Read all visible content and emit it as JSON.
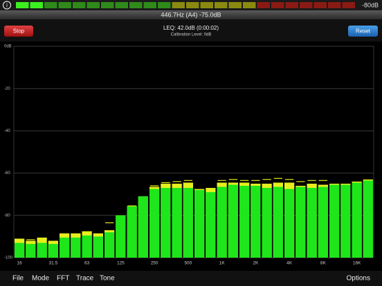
{
  "top_bar": {
    "info_icon": "i",
    "meter_label": "-80dB"
  },
  "pitch_readout": "446.7Hz (A4) -75.0dB",
  "toolbar": {
    "stop_button": "Stop",
    "leq": "LEQ: 42.0dB (0:00:02)",
    "calibration": "Calibration Level: 0dB",
    "reset_button": "Reset"
  },
  "chart_data": {
    "type": "bar",
    "categories": [
      "16",
      null,
      null,
      "31.5",
      null,
      null,
      "63",
      null,
      null,
      "125",
      null,
      null,
      "250",
      null,
      null,
      "500",
      null,
      null,
      "1K",
      null,
      null,
      "2K",
      null,
      null,
      "4K",
      null,
      null,
      "8K",
      null,
      null,
      "16K",
      null
    ],
    "series": [
      {
        "color": "#e6ef1c",
        "values": [
          -91,
          -92,
          -90.5,
          -92,
          -88.5,
          -88.5,
          -87.5,
          -88.5,
          -87,
          -80,
          -75.5,
          -71,
          -66.5,
          -65,
          -65,
          -64.5,
          -67.5,
          -67,
          -64.5,
          -64.5,
          -64.5,
          -65,
          -65,
          -64.5,
          -64.5,
          -66,
          -65,
          -65.5,
          -65,
          -65,
          -64,
          -63
        ]
      },
      {
        "color": "#1ee61a",
        "values": [
          -93,
          -93.5,
          -93,
          -93.5,
          -90.5,
          -90.5,
          -89.5,
          -90,
          -88,
          -80,
          -75.5,
          -71,
          -67.5,
          -67,
          -67,
          -67,
          -68,
          -69,
          -66.5,
          -65.5,
          -66,
          -66,
          -67,
          -66.5,
          -67.5,
          -66.5,
          -67,
          -66.5,
          -65.5,
          -65.5,
          -64.5,
          -63.5
        ]
      },
      {
        "color": "#e6ef1c",
        "values": [
          null,
          -91.5,
          null,
          null,
          null,
          null,
          null,
          null,
          -83.5,
          null,
          -75.5,
          null,
          -66,
          -64.5,
          -64,
          -63.5,
          null,
          null,
          -63.5,
          -63,
          -63.5,
          -63.5,
          -63,
          -62.5,
          -63,
          -64,
          -63.5,
          -63.5,
          null,
          null,
          null,
          null
        ]
      }
    ],
    "ylim": [
      -100,
      0
    ],
    "yticks": [
      {
        "value": 0,
        "label": "0dB"
      },
      -20,
      -40,
      -60,
      -80,
      -100
    ],
    "grid": true
  },
  "menu": {
    "items": [
      "File",
      "Mode",
      "FFT",
      "Trace",
      "Tone"
    ],
    "options": "Options"
  }
}
